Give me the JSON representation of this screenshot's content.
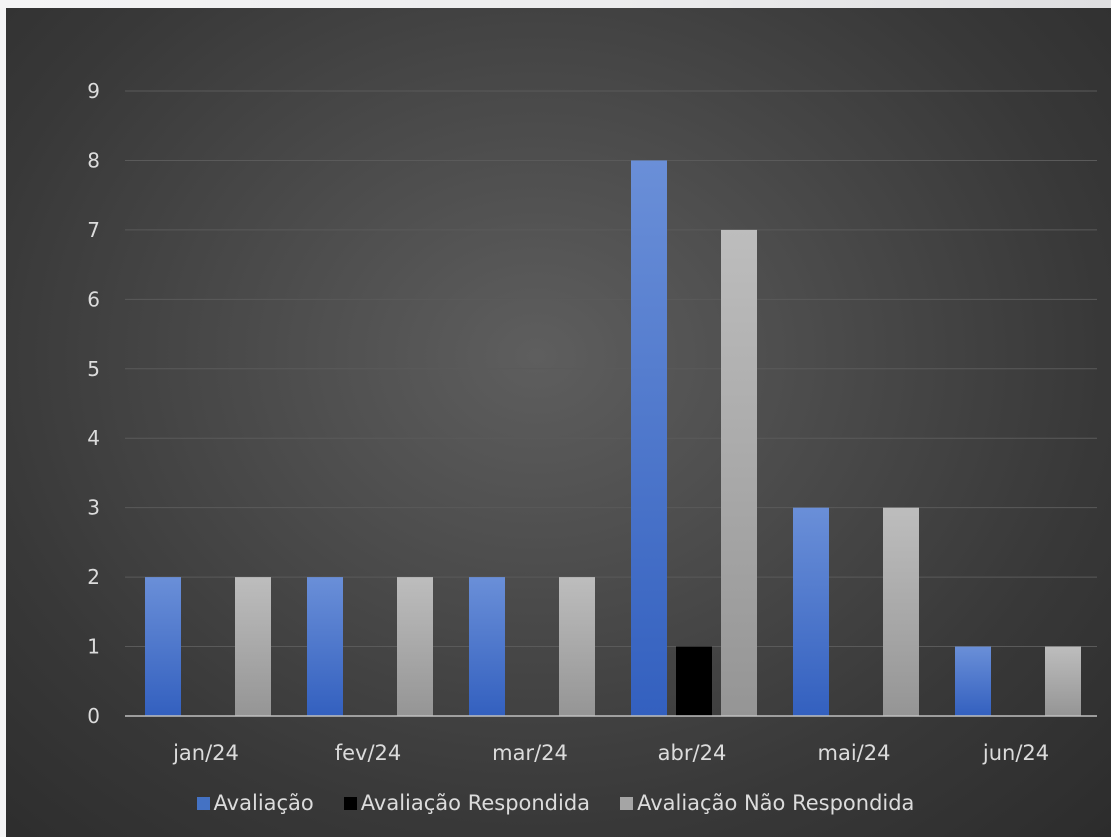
{
  "chart_data": {
    "type": "bar",
    "categories": [
      "jan/24",
      "fev/24",
      "mar/24",
      "abr/24",
      "mai/24",
      "jun/24"
    ],
    "series": [
      {
        "name": "Avaliação",
        "values": [
          2,
          2,
          2,
          8,
          3,
          1
        ],
        "color": "#4472c4"
      },
      {
        "name": "Avaliação Respondida",
        "values": [
          0,
          0,
          0,
          1,
          0,
          0
        ],
        "color": "#000000"
      },
      {
        "name": "Avaliação Não Respondida",
        "values": [
          2,
          2,
          2,
          7,
          3,
          1
        ],
        "color": "#a5a5a5"
      }
    ],
    "ylim": [
      0,
      9
    ],
    "yticks": [
      0,
      1,
      2,
      3,
      4,
      5,
      6,
      7,
      8,
      9
    ],
    "grid": true,
    "legend_position": "bottom"
  },
  "colors": {
    "background": "#404040",
    "gridline": "#5a5a5a",
    "axis_text": "#dcdcdc",
    "avaliacao": "#4472c4",
    "respondida": "#000000",
    "nao_respondida": "#a5a5a5"
  }
}
